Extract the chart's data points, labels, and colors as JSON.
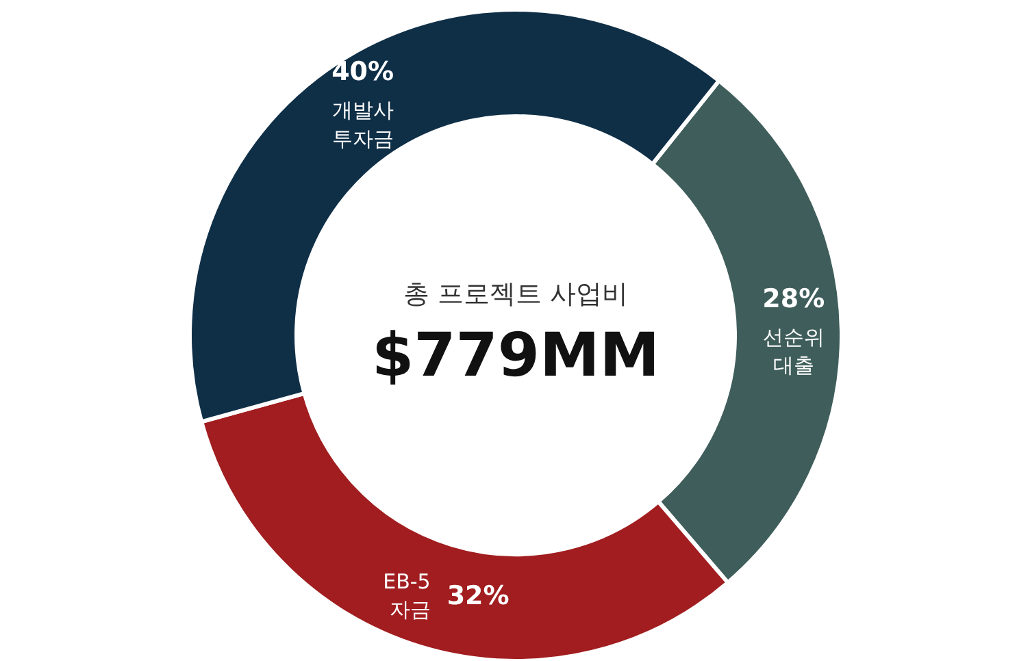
{
  "chart_data": {
    "type": "donut",
    "title": "총 프로젝트 사업비",
    "subtitle": "$779MM",
    "categories": [
      "선순위\n대출",
      "EB-5\n자금",
      "개발사\n투자금"
    ],
    "values": [
      28,
      32,
      40
    ],
    "colors": [
      "#3f5e5b",
      "#a11d1f",
      "#0f2f47"
    ],
    "value_labels": [
      "28%",
      "32%",
      "40%"
    ],
    "legend": false
  }
}
